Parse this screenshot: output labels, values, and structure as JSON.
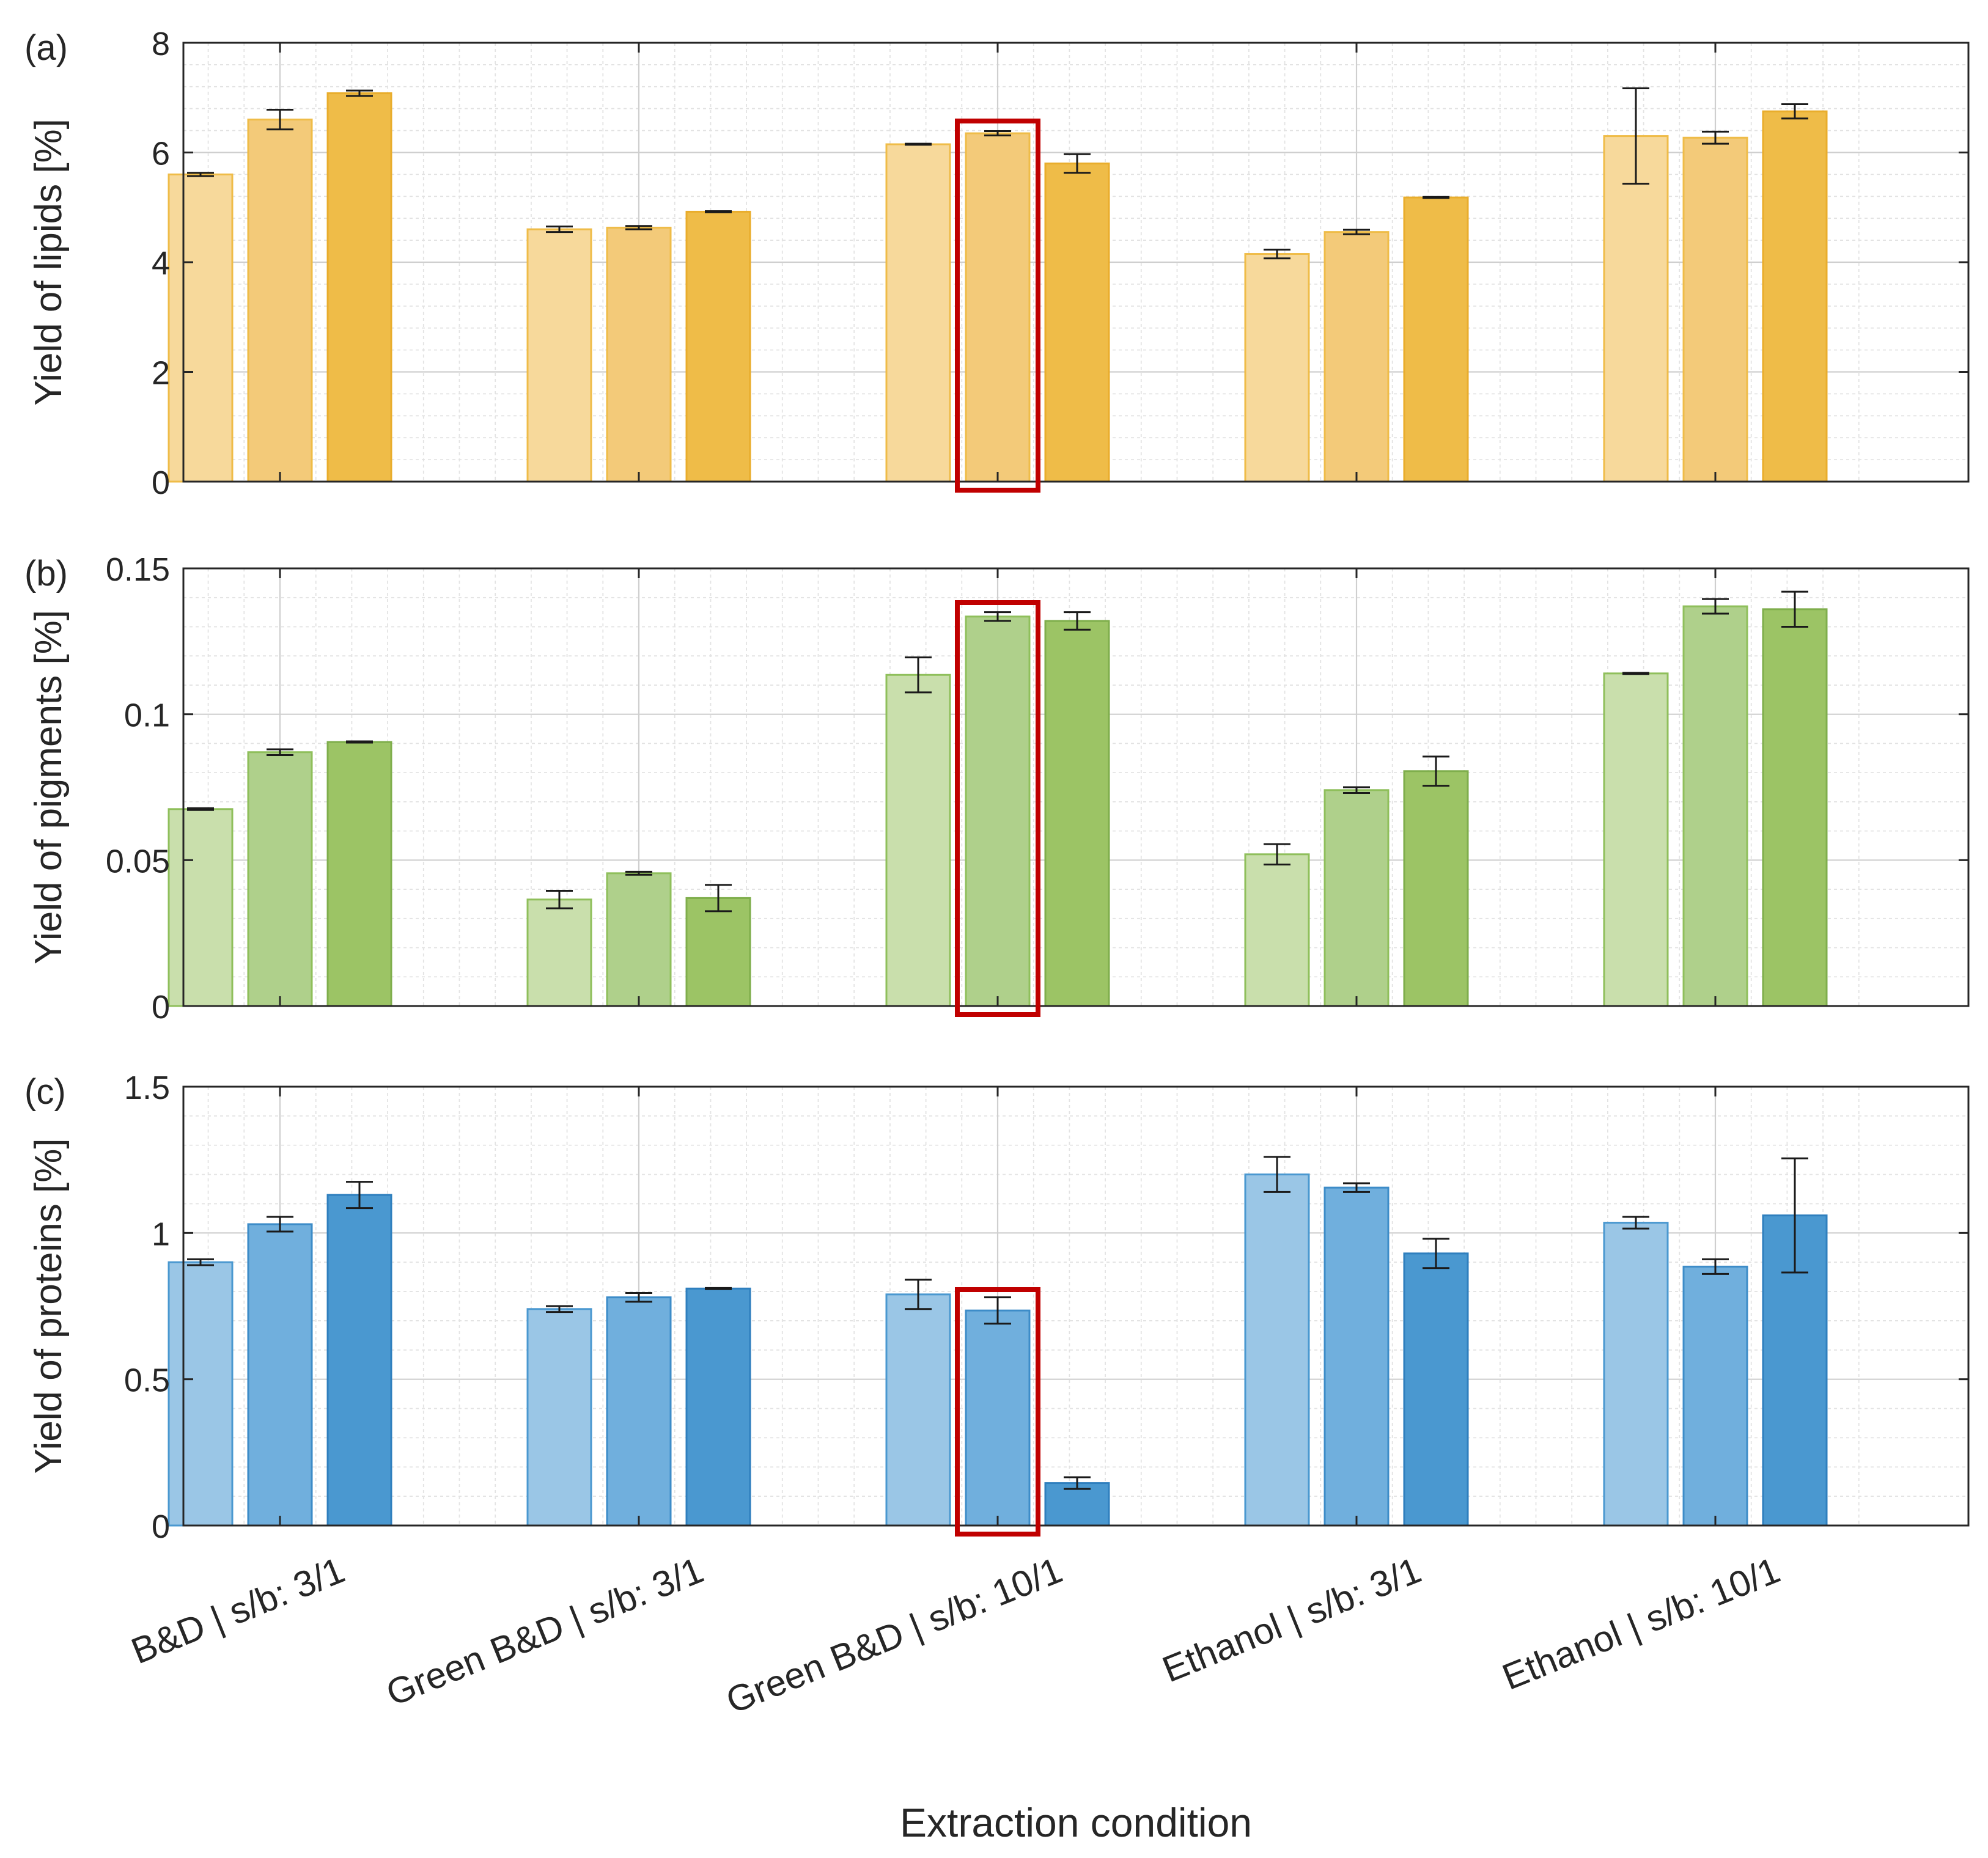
{
  "figure": {
    "xlabel": "Extraction condition",
    "categories": [
      "B&D | s/b: 3/1",
      "Green B&D | s/b: 3/1",
      "Green B&D | s/b: 10/1",
      "Ethanol | s/b: 3/1",
      "Ethanol | s/b: 10/1"
    ],
    "highlight": {
      "category_index": 2,
      "bar_index": 1,
      "color": "#c00000"
    }
  },
  "chart_data": [
    {
      "type": "bar",
      "panel_label": "(a)",
      "ylabel": "Yield of lipids [%]",
      "ylim": [
        0,
        8
      ],
      "yticks": [
        0,
        2,
        4,
        6,
        8
      ],
      "ytick_labels": [
        "0",
        "2",
        "4",
        "6",
        "8"
      ],
      "grid": "major and minor",
      "categories": [
        "B&D | s/b: 3/1",
        "Green B&D | s/b: 3/1",
        "Green B&D | s/b: 10/1",
        "Ethanol | s/b: 3/1",
        "Ethanol | s/b: 10/1"
      ],
      "series": [
        {
          "values": [
            5.6,
            4.6,
            6.15,
            4.15,
            6.3
          ],
          "errors": [
            0.03,
            0.05,
            0.01,
            0.08,
            0.87
          ],
          "fill": "#f7d99b",
          "stroke": "#efbc48"
        },
        {
          "values": [
            6.6,
            4.63,
            6.35,
            4.55,
            6.27
          ],
          "errors": [
            0.18,
            0.03,
            0.04,
            0.04,
            0.11
          ],
          "fill": "#f3ca79",
          "stroke": "#efbc48"
        },
        {
          "values": [
            7.08,
            4.92,
            5.8,
            5.18,
            6.75
          ],
          "errors": [
            0.05,
            0.01,
            0.17,
            0.01,
            0.13
          ],
          "fill": "#efbc48",
          "stroke": "#e9ad2c"
        }
      ]
    },
    {
      "type": "bar",
      "panel_label": "(b)",
      "ylabel": "Yield of pigments [%]",
      "ylim": [
        0,
        0.15
      ],
      "yticks": [
        0,
        0.05,
        0.1,
        0.15
      ],
      "ytick_labels": [
        "0",
        "0.05",
        "0.1",
        "0.15"
      ],
      "grid": "major and minor",
      "categories": [
        "B&D | s/b: 3/1",
        "Green B&D | s/b: 3/1",
        "Green B&D | s/b: 10/1",
        "Ethanol | s/b: 3/1",
        "Ethanol | s/b: 10/1"
      ],
      "series": [
        {
          "values": [
            0.0675,
            0.0365,
            0.1135,
            0.052,
            0.114
          ],
          "errors": [
            0.0003,
            0.003,
            0.006,
            0.0035,
            0.0002
          ],
          "fill": "#c9dfac",
          "stroke": "#8fbf5b"
        },
        {
          "values": [
            0.087,
            0.0455,
            0.1335,
            0.074,
            0.137
          ],
          "errors": [
            0.001,
            0.0005,
            0.0015,
            0.001,
            0.0025
          ],
          "fill": "#afd08b",
          "stroke": "#8fbf5b"
        },
        {
          "values": [
            0.0905,
            0.037,
            0.132,
            0.0805,
            0.136
          ],
          "errors": [
            0.0002,
            0.0045,
            0.003,
            0.005,
            0.006
          ],
          "fill": "#9cc465",
          "stroke": "#7fae4c"
        }
      ]
    },
    {
      "type": "bar",
      "panel_label": "(c)",
      "ylabel": "Yield of proteins [%]",
      "ylim": [
        0,
        1.5
      ],
      "yticks": [
        0,
        0.5,
        1,
        1.5
      ],
      "ytick_labels": [
        "0",
        "0.5",
        "1",
        "1.5"
      ],
      "grid": "major and minor",
      "categories": [
        "B&D | s/b: 3/1",
        "Green B&D | s/b: 3/1",
        "Green B&D | s/b: 10/1",
        "Ethanol | s/b: 3/1",
        "Ethanol | s/b: 10/1"
      ],
      "series": [
        {
          "values": [
            0.9,
            0.74,
            0.79,
            1.2,
            1.035
          ],
          "errors": [
            0.01,
            0.01,
            0.05,
            0.06,
            0.02
          ],
          "fill": "#9ac6e6",
          "stroke": "#4a98d0"
        },
        {
          "values": [
            1.03,
            0.78,
            0.735,
            1.155,
            0.885
          ],
          "errors": [
            0.025,
            0.015,
            0.045,
            0.015,
            0.025
          ],
          "fill": "#70afdd",
          "stroke": "#3d8cc8"
        },
        {
          "values": [
            1.13,
            0.81,
            0.145,
            0.93,
            1.06
          ],
          "errors": [
            0.045,
            0.002,
            0.02,
            0.05,
            0.195
          ],
          "fill": "#4a98d0",
          "stroke": "#2f7fbe"
        }
      ]
    }
  ]
}
